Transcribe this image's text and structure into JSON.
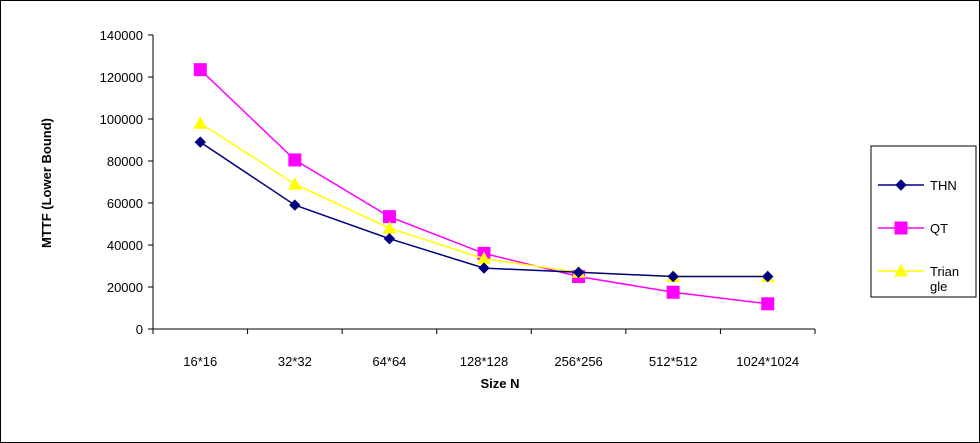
{
  "chart_data": {
    "type": "line",
    "title": "",
    "xlabel": "Size N",
    "ylabel": "MTTF (Lower Bound)",
    "categories": [
      "16*16",
      "32*32",
      "64*64",
      "128*128",
      "256*256",
      "512*512",
      "1024*1024"
    ],
    "ylim": [
      0,
      140000
    ],
    "yticks": [
      0,
      20000,
      40000,
      60000,
      80000,
      100000,
      120000,
      140000
    ],
    "grid": false,
    "legend_placement": "right",
    "series": [
      {
        "name": "THN",
        "color": "#000080",
        "marker": "diamond",
        "values": [
          89000,
          59000,
          43000,
          29000,
          27000,
          25000,
          25000
        ]
      },
      {
        "name": "QT",
        "color": "#FF00FF",
        "marker": "square",
        "values": [
          123500,
          80500,
          53500,
          36000,
          25000,
          17500,
          12000
        ]
      },
      {
        "name": "Trian gle",
        "label_lines": [
          "Trian",
          "gle"
        ],
        "color": "#FFFF00",
        "marker": "triangle",
        "values": [
          98000,
          69000,
          48000,
          33500,
          27000,
          25000,
          25000
        ]
      }
    ]
  }
}
